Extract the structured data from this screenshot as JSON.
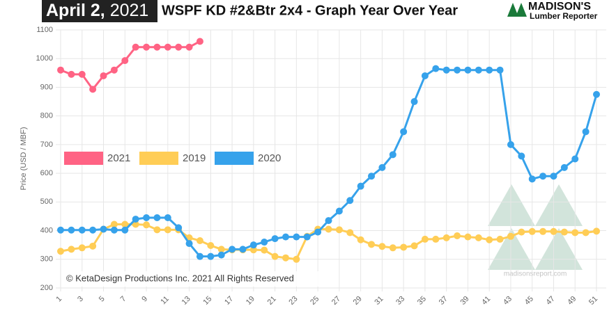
{
  "header": {
    "date": "April 2,",
    "year": "2021",
    "logo": "MADISON'S",
    "logo_sub": "Lumber Reporter",
    "watermark": "madisonsreport.com",
    "copyright": "© KetaDesign Productions Inc. 2021 All Rights Reserved"
  },
  "chart_data": {
    "type": "line",
    "title": "WSPF KD #2&Btr 2x4 - Graph Year Over Year",
    "y_label": "Price (USD / MBF)",
    "x": [
      1,
      2,
      3,
      4,
      5,
      6,
      7,
      8,
      9,
      10,
      11,
      12,
      13,
      14,
      15,
      16,
      17,
      18,
      19,
      20,
      21,
      22,
      23,
      24,
      25,
      26,
      27,
      28,
      29,
      30,
      31,
      32,
      33,
      34,
      35,
      36,
      37,
      38,
      39,
      40,
      41,
      42,
      43,
      44,
      45,
      46,
      47,
      48,
      49,
      50,
      51
    ],
    "xlim": [
      1,
      51
    ],
    "xticks": [
      1,
      3,
      5,
      7,
      9,
      11,
      13,
      15,
      17,
      19,
      21,
      23,
      25,
      27,
      29,
      31,
      33,
      35,
      37,
      39,
      41,
      43,
      45,
      47,
      49,
      51
    ],
    "ylim": [
      200,
      1100
    ],
    "yticks": [
      200,
      300,
      400,
      500,
      600,
      700,
      800,
      900,
      1000,
      1100
    ],
    "grid": true,
    "legend": "left",
    "series": [
      {
        "name": "2021",
        "color": "#ff6384",
        "values": [
          960,
          945,
          945,
          893,
          940,
          960,
          993,
          1040,
          1040,
          1040,
          1040,
          1040,
          1040,
          1060,
          null,
          null,
          null,
          null,
          null,
          null,
          null,
          null,
          null,
          null,
          null,
          null,
          null,
          null,
          null,
          null,
          null,
          null,
          null,
          null,
          null,
          null,
          null,
          null,
          null,
          null,
          null,
          null,
          null,
          null,
          null,
          null,
          null,
          null,
          null,
          null,
          null
        ]
      },
      {
        "name": "2019",
        "color": "#ffcd56",
        "values": [
          328,
          335,
          340,
          346,
          405,
          422,
          422,
          422,
          420,
          403,
          403,
          403,
          375,
          365,
          348,
          335,
          333,
          333,
          333,
          332,
          310,
          305,
          300,
          380,
          405,
          405,
          403,
          393,
          368,
          352,
          345,
          340,
          342,
          347,
          370,
          370,
          375,
          382,
          378,
          375,
          368,
          370,
          380,
          395,
          397,
          397,
          397,
          395,
          393,
          393,
          398
        ]
      },
      {
        "name": "2020",
        "color": "#36a2eb",
        "values": [
          402,
          402,
          402,
          402,
          405,
          402,
          402,
          440,
          445,
          445,
          445,
          410,
          355,
          310,
          310,
          315,
          335,
          335,
          350,
          360,
          372,
          378,
          378,
          378,
          395,
          435,
          468,
          505,
          555,
          590,
          620,
          665,
          745,
          850,
          940,
          965,
          960,
          960,
          960,
          960,
          960,
          960,
          700,
          660,
          580,
          590,
          590,
          620,
          650,
          745,
          875
        ]
      }
    ]
  }
}
